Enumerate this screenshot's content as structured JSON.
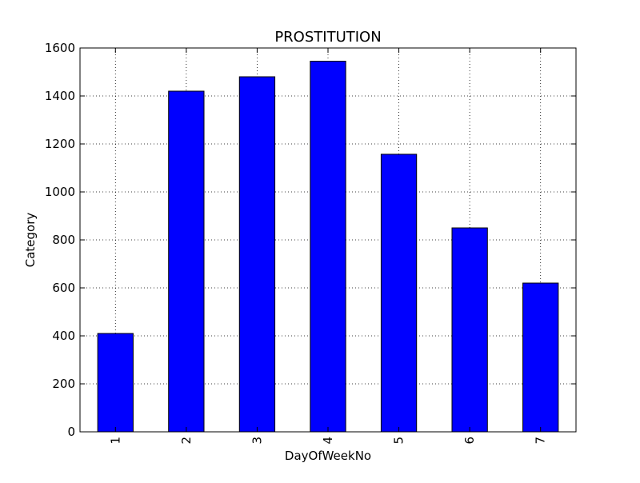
{
  "chart_data": {
    "type": "bar",
    "title": "PROSTITUTION",
    "xlabel": "DayOfWeekNo",
    "ylabel": "Category",
    "categories": [
      "1",
      "2",
      "3",
      "4",
      "5",
      "6",
      "7"
    ],
    "values": [
      410,
      1420,
      1480,
      1545,
      1157,
      850,
      620
    ],
    "ylim": [
      0,
      1600
    ],
    "yticks": [
      "0",
      "200",
      "400",
      "600",
      "800",
      "1000",
      "1200",
      "1400",
      "1600"
    ],
    "grid": true,
    "bar_color": "#0000ff",
    "edge_color": "#000000"
  }
}
